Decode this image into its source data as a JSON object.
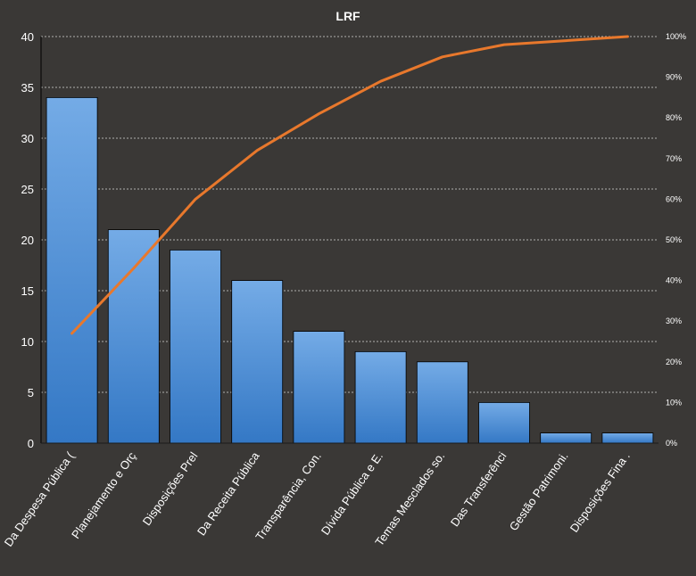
{
  "chart_data": {
    "type": "bar",
    "subtype": "pareto",
    "title": "LRF",
    "categories": [
      "Da Despesa Pública (",
      "Planejamento e Orç",
      "Disposições Prel",
      "Da Receita Pública",
      "Transparência, Con.",
      "Dívida Pública e E.",
      "Temas Mesclados so.",
      "Das Transferênci",
      "Gestão Patrimoni.",
      "Disposições Fina ."
    ],
    "series": [
      {
        "values": [
          34,
          21,
          19,
          16,
          11,
          9,
          8,
          4,
          1,
          1
        ]
      },
      {
        "values": [
          27,
          43,
          60,
          72,
          81,
          89,
          95,
          98,
          99,
          100
        ],
        "axis": "secondary"
      }
    ],
    "ylim": [
      0,
      40
    ],
    "yticks": [
      "0",
      "5",
      "10",
      "15",
      "20",
      "25",
      "30",
      "35",
      "40"
    ],
    "y2lim": [
      0,
      100
    ],
    "y2ticks": [
      "0%",
      "10%",
      "20%",
      "30%",
      "40%",
      "50%",
      "60%",
      "70%",
      "80%",
      "90%",
      "100%"
    ],
    "grid": true,
    "legend": "none",
    "colors": {
      "background": "#3a3836",
      "bar_top": "#74abe6",
      "bar_bottom": "#3478c5",
      "line": "#e8782c",
      "text": "#ffffff",
      "grid": "#d8d8d8"
    }
  }
}
